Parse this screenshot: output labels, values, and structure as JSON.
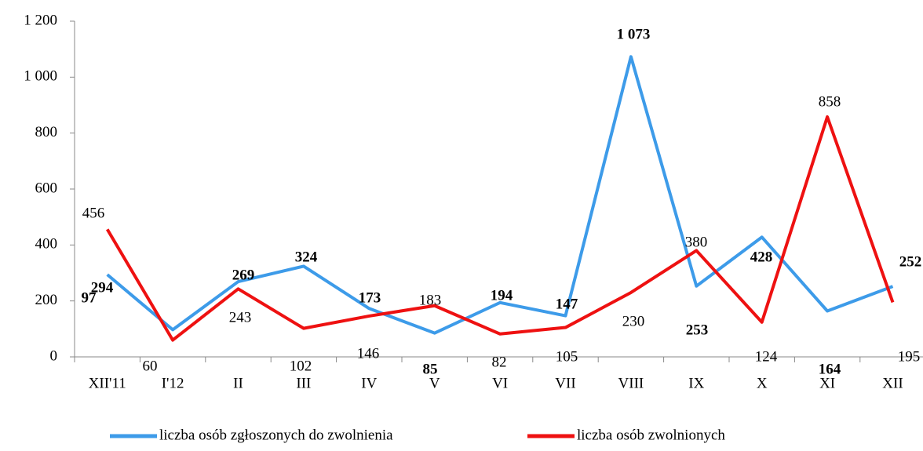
{
  "chart_data": {
    "type": "line",
    "categories": [
      "XII'11",
      "I'12",
      "II",
      "III",
      "IV",
      "V",
      "VI",
      "VII",
      "VIII",
      "IX",
      "X",
      "XI",
      "XII"
    ],
    "series": [
      {
        "name": "liczba osób zgłoszonych do zwolnienia",
        "color": "#3d9be9",
        "values": [
          294,
          97,
          269,
          324,
          173,
          85,
          194,
          147,
          1073,
          253,
          428,
          164,
          252
        ],
        "value_labels": [
          "294",
          "97",
          "269",
          "324",
          "173",
          "85",
          "194",
          "147",
          "1 073",
          "253",
          "428",
          "164",
          "252"
        ]
      },
      {
        "name": "liczba osób zwolnionych",
        "color": "#ee1111",
        "values": [
          456,
          60,
          243,
          102,
          146,
          183,
          82,
          105,
          230,
          380,
          124,
          858,
          195
        ]
      }
    ],
    "ylim": [
      0,
      1200
    ],
    "yticks": [
      0,
      200,
      400,
      600,
      800,
      {
        "value": 1000,
        "label": "1 000"
      },
      {
        "value": 1200,
        "label": "1 200"
      }
    ],
    "legend": "bottom"
  }
}
